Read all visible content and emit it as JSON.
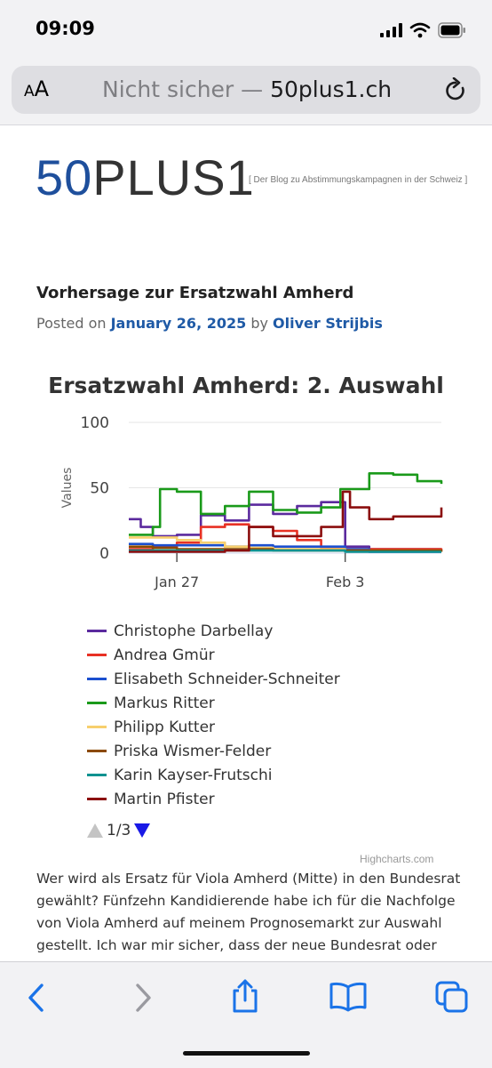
{
  "status": {
    "time": "09:09"
  },
  "browser": {
    "text_size_small": "A",
    "text_size_large": "A",
    "url_prefix": "Nicht sicher — ",
    "url_domain": "50plus1.ch"
  },
  "site": {
    "logo_number": "50",
    "logo_word": "PLUS1",
    "tagline": "[ Der Blog zu Abstimmungskampagnen in der Schweiz ]"
  },
  "post": {
    "title": "Vorhersage zur Ersatzwahl Amherd",
    "posted_on": "Posted on ",
    "date": "January 26, 2025",
    "by": " by ",
    "author": "Oliver Strijbis"
  },
  "chart_data": {
    "type": "line",
    "title": "Ersatzwahl Amherd: 2. Auswahl",
    "ylabel": "Values",
    "ylim": [
      0,
      100
    ],
    "yticks": [
      0,
      50,
      100
    ],
    "xlim": [
      "2025-01-25",
      "2025-02-07"
    ],
    "xticks": [
      {
        "x": "2025-01-27",
        "label": "Jan 27"
      },
      {
        "x": "2025-02-03",
        "label": "Feb 3"
      }
    ],
    "series": [
      {
        "name": "Christophe Darbellay",
        "color": "#5b2a9e",
        "points": [
          [
            "2025-01-25",
            26
          ],
          [
            "2025-01-25.5",
            20
          ],
          [
            "2025-01-26",
            13
          ],
          [
            "2025-01-27",
            14
          ],
          [
            "2025-01-28",
            29
          ],
          [
            "2025-01-29",
            25
          ],
          [
            "2025-01-30",
            37
          ],
          [
            "2025-01-31",
            30
          ],
          [
            "2025-02-01",
            36
          ],
          [
            "2025-02-02",
            39
          ],
          [
            "2025-02-03",
            5
          ],
          [
            "2025-02-04",
            3
          ],
          [
            "2025-02-06",
            3
          ],
          [
            "2025-02-07",
            3
          ]
        ]
      },
      {
        "name": "Andrea Gmür",
        "color": "#e83124",
        "points": [
          [
            "2025-01-25",
            3
          ],
          [
            "2025-01-26",
            5
          ],
          [
            "2025-01-27",
            8
          ],
          [
            "2025-01-28",
            20
          ],
          [
            "2025-01-29",
            22
          ],
          [
            "2025-01-30",
            20
          ],
          [
            "2025-01-31",
            17
          ],
          [
            "2025-02-01",
            10
          ],
          [
            "2025-02-02",
            4
          ],
          [
            "2025-02-03",
            3
          ],
          [
            "2025-02-07",
            2
          ]
        ]
      },
      {
        "name": "Elisabeth Schneider-Schneiter",
        "color": "#1b4fcf",
        "points": [
          [
            "2025-01-25",
            7
          ],
          [
            "2025-01-26",
            6
          ],
          [
            "2025-01-27",
            6
          ],
          [
            "2025-01-28",
            6
          ],
          [
            "2025-01-29",
            5
          ],
          [
            "2025-01-30",
            6
          ],
          [
            "2025-01-31",
            5
          ],
          [
            "2025-02-01",
            5
          ],
          [
            "2025-02-02",
            5
          ],
          [
            "2025-02-03",
            3
          ],
          [
            "2025-02-04",
            1
          ],
          [
            "2025-02-07",
            1
          ]
        ]
      },
      {
        "name": "Markus Ritter",
        "color": "#1a9a1a",
        "points": [
          [
            "2025-01-25",
            14
          ],
          [
            "2025-01-26",
            20
          ],
          [
            "2025-01-26.3",
            49
          ],
          [
            "2025-01-27",
            47
          ],
          [
            "2025-01-28",
            30
          ],
          [
            "2025-01-29",
            36
          ],
          [
            "2025-01-30",
            47
          ],
          [
            "2025-01-31",
            33
          ],
          [
            "2025-02-01",
            31
          ],
          [
            "2025-02-02",
            35
          ],
          [
            "2025-02-02.8",
            49
          ],
          [
            "2025-02-03",
            49
          ],
          [
            "2025-02-04",
            61
          ],
          [
            "2025-02-05",
            60
          ],
          [
            "2025-02-06",
            55
          ],
          [
            "2025-02-07",
            53
          ]
        ]
      },
      {
        "name": "Philipp Kutter",
        "color": "#f7cf6d",
        "points": [
          [
            "2025-01-25",
            12
          ],
          [
            "2025-01-26",
            12
          ],
          [
            "2025-01-27",
            10
          ],
          [
            "2025-01-28",
            8
          ],
          [
            "2025-01-29",
            5
          ],
          [
            "2025-01-30",
            4
          ],
          [
            "2025-01-31",
            3
          ],
          [
            "2025-02-02",
            3
          ],
          [
            "2025-02-03",
            2
          ],
          [
            "2025-02-07",
            2
          ]
        ]
      },
      {
        "name": "Priska Wismer-Felder",
        "color": "#8b4a00",
        "points": [
          [
            "2025-01-25",
            5
          ],
          [
            "2025-01-26",
            4
          ],
          [
            "2025-01-27",
            3
          ],
          [
            "2025-01-29",
            3
          ],
          [
            "2025-01-31",
            2
          ],
          [
            "2025-02-03",
            2
          ],
          [
            "2025-02-07",
            1
          ]
        ]
      },
      {
        "name": "Karin Kayser-Frutschi",
        "color": "#0c9290",
        "points": [
          [
            "2025-01-25",
            2
          ],
          [
            "2025-01-27",
            2
          ],
          [
            "2025-01-30",
            2
          ],
          [
            "2025-02-03",
            1
          ],
          [
            "2025-02-07",
            1
          ]
        ]
      },
      {
        "name": "Martin Pfister",
        "color": "#8b0e0e",
        "points": [
          [
            "2025-01-25",
            1
          ],
          [
            "2025-01-27",
            1
          ],
          [
            "2025-01-29",
            2
          ],
          [
            "2025-01-30",
            20
          ],
          [
            "2025-01-31",
            13
          ],
          [
            "2025-02-01",
            13
          ],
          [
            "2025-02-02",
            20
          ],
          [
            "2025-02-02.9",
            47
          ],
          [
            "2025-02-03.2",
            35
          ],
          [
            "2025-02-04",
            26
          ],
          [
            "2025-02-05",
            28
          ],
          [
            "2025-02-06",
            28
          ],
          [
            "2025-02-07",
            35
          ]
        ]
      }
    ],
    "legend_page": "1/3",
    "credits": "Highcharts.com"
  },
  "article": {
    "text": "Wer wird als Ersatz für Viola Amherd (Mitte) in den Bundesrat gewählt? Fünfzehn Kandidierende habe ich für die Nachfolge von Viola Amherd auf meinem Prognosemarkt zur Auswahl gestellt. Ich war mir sicher, dass der neue Bundesrat oder die neue"
  }
}
